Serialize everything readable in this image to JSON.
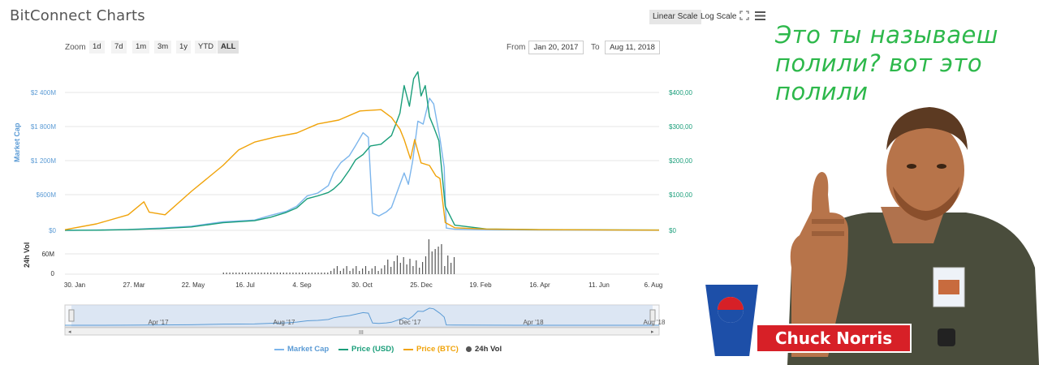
{
  "header": {
    "title": "BitConnect Charts",
    "linear_scale": "Linear Scale",
    "log_scale": "Log Scale",
    "expand_icon": "expand-icon",
    "menu_icon": "menu-icon"
  },
  "zoom": {
    "label": "Zoom",
    "buttons": [
      "1d",
      "7d",
      "1m",
      "3m",
      "1y",
      "YTD",
      "ALL"
    ],
    "selected": "ALL"
  },
  "range": {
    "from_label": "From",
    "from_value": "Jan 20, 2017",
    "to_label": "To",
    "to_value": "Aug 11, 2018"
  },
  "chart_data": {
    "type": "line",
    "left_axis_title": "Market Cap",
    "left_ticks": [
      "$2 400M",
      "$1 800M",
      "$1 200M",
      "$600M",
      "$0"
    ],
    "right_ticks": [
      "$400,00",
      "$300,00",
      "$200,00",
      "$100,00",
      "$0"
    ],
    "volume_axis_title": "24h Vol",
    "volume_ticks": [
      "60M",
      "0"
    ],
    "x_ticks": [
      "30. Jan",
      "27. Mar",
      "22. May",
      "16. Jul",
      "4. Sep",
      "30. Oct",
      "25. Dec",
      "19. Feb",
      "16. Apr",
      "11. Jun",
      "6. Aug"
    ],
    "navigator_ticks": [
      "Apr '17",
      "Aug '17",
      "Dec '17",
      "Apr '18",
      "Aug '18"
    ],
    "series": [
      {
        "name": "Market Cap",
        "color": "#7cb5ec",
        "axis": "market_cap_musd",
        "points": [
          [
            0,
            0
          ],
          [
            30,
            5
          ],
          [
            60,
            15
          ],
          [
            90,
            40
          ],
          [
            120,
            70
          ],
          [
            150,
            150
          ],
          [
            180,
            180
          ],
          [
            195,
            260
          ],
          [
            210,
            330
          ],
          [
            220,
            420
          ],
          [
            230,
            600
          ],
          [
            240,
            650
          ],
          [
            250,
            780
          ],
          [
            255,
            1000
          ],
          [
            262,
            1180
          ],
          [
            270,
            1300
          ],
          [
            276,
            1480
          ],
          [
            283,
            1700
          ],
          [
            288,
            1620
          ],
          [
            292,
            300
          ],
          [
            298,
            250
          ],
          [
            305,
            320
          ],
          [
            310,
            400
          ],
          [
            318,
            800
          ],
          [
            322,
            1000
          ],
          [
            326,
            800
          ],
          [
            330,
            1200
          ],
          [
            335,
            1900
          ],
          [
            340,
            1850
          ],
          [
            346,
            2300
          ],
          [
            350,
            2200
          ],
          [
            356,
            1600
          ],
          [
            360,
            1100
          ],
          [
            362,
            40
          ],
          [
            370,
            20
          ],
          [
            400,
            10
          ],
          [
            450,
            5
          ],
          [
            564,
            2
          ]
        ]
      },
      {
        "name": "Price (USD)",
        "color": "#1a9e7a",
        "axis": "price_usd",
        "points": [
          [
            0,
            0.2
          ],
          [
            30,
            0.5
          ],
          [
            60,
            2
          ],
          [
            90,
            5
          ],
          [
            120,
            10
          ],
          [
            150,
            22
          ],
          [
            180,
            28
          ],
          [
            195,
            38
          ],
          [
            210,
            52
          ],
          [
            220,
            65
          ],
          [
            230,
            92
          ],
          [
            240,
            100
          ],
          [
            250,
            110
          ],
          [
            255,
            120
          ],
          [
            262,
            140
          ],
          [
            270,
            175
          ],
          [
            276,
            205
          ],
          [
            283,
            220
          ],
          [
            290,
            245
          ],
          [
            300,
            250
          ],
          [
            310,
            275
          ],
          [
            318,
            340
          ],
          [
            322,
            420
          ],
          [
            327,
            360
          ],
          [
            331,
            440
          ],
          [
            335,
            460
          ],
          [
            338,
            390
          ],
          [
            342,
            420
          ],
          [
            346,
            330
          ],
          [
            350,
            300
          ],
          [
            355,
            260
          ],
          [
            361,
            70
          ],
          [
            370,
            15
          ],
          [
            400,
            4
          ],
          [
            450,
            2
          ],
          [
            564,
            1
          ]
        ]
      },
      {
        "name": "Price (BTC)",
        "color": "#f0a30a",
        "axis": "price_btc_scaled",
        "points": [
          [
            0,
            0.005
          ],
          [
            30,
            0.05
          ],
          [
            60,
            0.12
          ],
          [
            75,
            0.22
          ],
          [
            80,
            0.14
          ],
          [
            95,
            0.12
          ],
          [
            120,
            0.3
          ],
          [
            150,
            0.5
          ],
          [
            165,
            0.62
          ],
          [
            180,
            0.68
          ],
          [
            200,
            0.72
          ],
          [
            220,
            0.75
          ],
          [
            240,
            0.82
          ],
          [
            260,
            0.85
          ],
          [
            280,
            0.92
          ],
          [
            300,
            0.93
          ],
          [
            310,
            0.87
          ],
          [
            318,
            0.78
          ],
          [
            322,
            0.7
          ],
          [
            328,
            0.55
          ],
          [
            332,
            0.7
          ],
          [
            338,
            0.52
          ],
          [
            346,
            0.5
          ],
          [
            352,
            0.42
          ],
          [
            356,
            0.4
          ],
          [
            361,
            0.06
          ],
          [
            370,
            0.02
          ],
          [
            400,
            0.01
          ],
          [
            450,
            0.005
          ],
          [
            564,
            0.002
          ]
        ]
      }
    ],
    "volume_series": {
      "name": "24h Vol",
      "color": "#555555"
    },
    "navigator_series_color": "#5b9bd5"
  },
  "legend": [
    {
      "label": "Market Cap",
      "color": "#7cb5ec"
    },
    {
      "label": "Price (USD)",
      "color": "#1a9e7a"
    },
    {
      "label": "Price (BTC)",
      "color": "#f0a30a"
    },
    {
      "label": "24h Vol",
      "color": "#555555"
    }
  ],
  "meme": {
    "line1": "Это ты называеш",
    "line2": "полили? вот это",
    "line3": "полили",
    "badge": "Chuck Norris",
    "text_color": "#2db84b"
  }
}
